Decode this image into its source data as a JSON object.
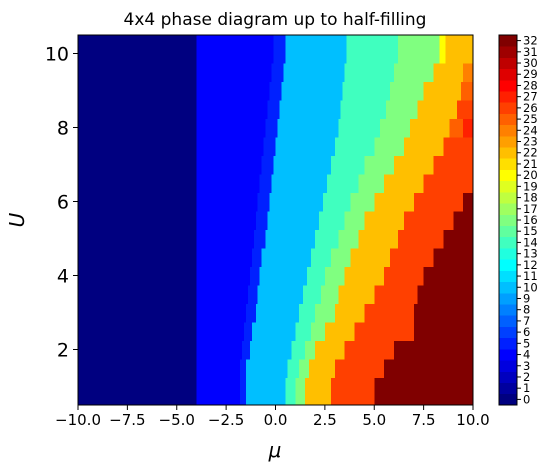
{
  "chart_data": {
    "type": "heatmap",
    "title": "4x4 phase diagram up to half-filling",
    "xlabel": "μ",
    "ylabel": "U",
    "xlim": [
      -10.0,
      10.0
    ],
    "ylim": [
      0.5,
      10.5
    ],
    "x_ticks": [
      "−10.0",
      "−7.5",
      "−5.0",
      "−2.5",
      "0.0",
      "2.5",
      "5.0",
      "7.5",
      "10.0"
    ],
    "x_tick_values": [
      -10,
      -7.5,
      -5,
      -2.5,
      0,
      2.5,
      5,
      7.5,
      10
    ],
    "y_ticks": [
      "2",
      "4",
      "6",
      "8",
      "10"
    ],
    "y_tick_values": [
      2,
      4,
      6,
      8,
      10
    ],
    "colorbar": {
      "colormap": "jet",
      "min": 0,
      "max": 32,
      "ticks": [
        "0",
        "1",
        "2",
        "3",
        "4",
        "5",
        "6",
        "7",
        "8",
        "9",
        "10",
        "11",
        "12",
        "13",
        "14",
        "15",
        "16",
        "17",
        "18",
        "19",
        "20",
        "21",
        "22",
        "23",
        "24",
        "25",
        "26",
        "27",
        "28",
        "29",
        "30",
        "31",
        "32"
      ]
    },
    "u_values": [
      1,
      1.5,
      2,
      2.5,
      3,
      3.5,
      4,
      4.5,
      5,
      5.5,
      6,
      6.5,
      7,
      7.5,
      8,
      8.5,
      9,
      9.5,
      10
    ],
    "rows": [
      [
        [
          -10,
          0
        ],
        [
          -4.0,
          4
        ],
        [
          -1.8,
          5
        ],
        [
          -1.5,
          10
        ],
        [
          0.5,
          14
        ],
        [
          1.0,
          16
        ],
        [
          1.5,
          22
        ],
        [
          2.8,
          26
        ],
        [
          5.0,
          32
        ]
      ],
      [
        [
          -10,
          0
        ],
        [
          -4.0,
          4
        ],
        [
          -1.8,
          5
        ],
        [
          -1.5,
          10
        ],
        [
          0.6,
          14
        ],
        [
          1.2,
          16
        ],
        [
          1.7,
          22
        ],
        [
          3.0,
          26
        ],
        [
          5.5,
          32
        ]
      ],
      [
        [
          -10,
          0
        ],
        [
          -4.0,
          4
        ],
        [
          -1.7,
          5
        ],
        [
          -1.3,
          10
        ],
        [
          0.8,
          14
        ],
        [
          1.5,
          16
        ],
        [
          2.0,
          22
        ],
        [
          3.5,
          26
        ],
        [
          6.0,
          32
        ]
      ],
      [
        [
          -10,
          0
        ],
        [
          -4.0,
          4
        ],
        [
          -1.6,
          5
        ],
        [
          -1.2,
          10
        ],
        [
          1.0,
          14
        ],
        [
          1.8,
          16
        ],
        [
          2.5,
          22
        ],
        [
          4.0,
          26
        ],
        [
          7.0,
          32
        ]
      ],
      [
        [
          -10,
          0
        ],
        [
          -4.0,
          4
        ],
        [
          -1.5,
          5
        ],
        [
          -1.0,
          10
        ],
        [
          1.2,
          14
        ],
        [
          2.0,
          16
        ],
        [
          3.0,
          22
        ],
        [
          4.5,
          26
        ],
        [
          7.0,
          32
        ]
      ],
      [
        [
          -10,
          0
        ],
        [
          -4.0,
          4
        ],
        [
          -1.4,
          5
        ],
        [
          -0.9,
          10
        ],
        [
          1.4,
          14
        ],
        [
          2.3,
          16
        ],
        [
          3.2,
          22
        ],
        [
          5.0,
          26
        ],
        [
          7.2,
          32
        ]
      ],
      [
        [
          -10,
          0
        ],
        [
          -4.0,
          4
        ],
        [
          -1.3,
          5
        ],
        [
          -0.8,
          10
        ],
        [
          1.6,
          14
        ],
        [
          2.5,
          16
        ],
        [
          3.5,
          22
        ],
        [
          5.5,
          26
        ],
        [
          7.5,
          32
        ]
      ],
      [
        [
          -10,
          0
        ],
        [
          -4.0,
          4
        ],
        [
          -1.2,
          5
        ],
        [
          -0.7,
          10
        ],
        [
          1.8,
          14
        ],
        [
          2.8,
          16
        ],
        [
          3.8,
          22
        ],
        [
          5.8,
          26
        ],
        [
          8.0,
          32
        ]
      ],
      [
        [
          -10,
          0
        ],
        [
          -4.0,
          4
        ],
        [
          -1.1,
          5
        ],
        [
          -0.5,
          10
        ],
        [
          2.0,
          14
        ],
        [
          3.2,
          16
        ],
        [
          4.2,
          22
        ],
        [
          6.2,
          26
        ],
        [
          8.5,
          32
        ]
      ],
      [
        [
          -10,
          0
        ],
        [
          -4.0,
          4
        ],
        [
          -1.0,
          5
        ],
        [
          -0.4,
          10
        ],
        [
          2.2,
          14
        ],
        [
          3.5,
          16
        ],
        [
          4.5,
          22
        ],
        [
          6.5,
          26
        ],
        [
          9.0,
          32
        ]
      ],
      [
        [
          -10,
          0
        ],
        [
          -4.0,
          4
        ],
        [
          -0.9,
          5
        ],
        [
          -0.3,
          10
        ],
        [
          2.4,
          14
        ],
        [
          3.8,
          16
        ],
        [
          5.0,
          22
        ],
        [
          7.0,
          26
        ],
        [
          9.5,
          32
        ]
      ],
      [
        [
          -10,
          0
        ],
        [
          -4.0,
          4
        ],
        [
          -0.8,
          5
        ],
        [
          -0.2,
          10
        ],
        [
          2.6,
          14
        ],
        [
          4.2,
          16
        ],
        [
          5.5,
          22
        ],
        [
          7.5,
          26
        ]
      ],
      [
        [
          -10,
          0
        ],
        [
          -4.0,
          4
        ],
        [
          -0.7,
          5
        ],
        [
          -0.1,
          10
        ],
        [
          2.8,
          14
        ],
        [
          4.5,
          16
        ],
        [
          6.0,
          22
        ],
        [
          8.0,
          26
        ]
      ],
      [
        [
          -10,
          0
        ],
        [
          -4.0,
          4
        ],
        [
          -0.6,
          5
        ],
        [
          0.0,
          10
        ],
        [
          3.0,
          14
        ],
        [
          5.0,
          16
        ],
        [
          6.5,
          22
        ],
        [
          8.5,
          26
        ]
      ],
      [
        [
          -10,
          0
        ],
        [
          -4.0,
          4
        ],
        [
          -0.5,
          5
        ],
        [
          0.1,
          10
        ],
        [
          3.2,
          14
        ],
        [
          5.3,
          16
        ],
        [
          6.8,
          22
        ],
        [
          8.8,
          25
        ],
        [
          9.5,
          27
        ]
      ],
      [
        [
          -10,
          0
        ],
        [
          -4.0,
          4
        ],
        [
          -0.4,
          5
        ],
        [
          0.2,
          10
        ],
        [
          3.3,
          14
        ],
        [
          5.6,
          16
        ],
        [
          7.2,
          22
        ],
        [
          9.2,
          26
        ]
      ],
      [
        [
          -10,
          0
        ],
        [
          -4.0,
          4
        ],
        [
          -0.3,
          5
        ],
        [
          0.3,
          10
        ],
        [
          3.4,
          14
        ],
        [
          5.8,
          16
        ],
        [
          7.5,
          22
        ],
        [
          9.4,
          25
        ]
      ],
      [
        [
          -10,
          0
        ],
        [
          -4.0,
          4
        ],
        [
          -0.2,
          5
        ],
        [
          0.4,
          10
        ],
        [
          3.5,
          14
        ],
        [
          6.0,
          16
        ],
        [
          8.0,
          22
        ],
        [
          9.5,
          24
        ]
      ],
      [
        [
          -10,
          0
        ],
        [
          -4.0,
          4
        ],
        [
          -0.1,
          5
        ],
        [
          0.5,
          10
        ],
        [
          3.6,
          14
        ],
        [
          6.2,
          16
        ],
        [
          8.3,
          20
        ],
        [
          8.6,
          22
        ]
      ]
    ]
  }
}
